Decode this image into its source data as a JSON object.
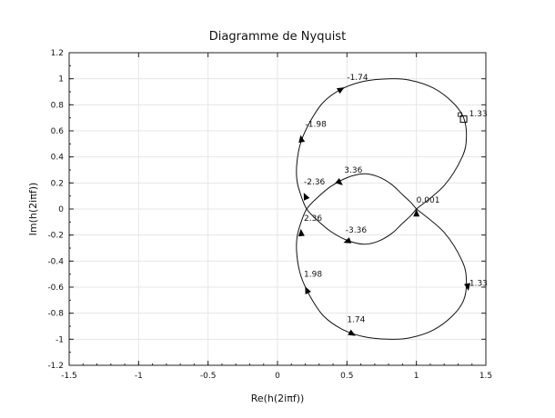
{
  "chart_data": {
    "type": "line",
    "title": "Diagramme de Nyquist",
    "xlabel": "Re(h(2iπf))",
    "ylabel": "Im(h(2iπf))",
    "xlim": [
      -1.5,
      1.5
    ],
    "ylim": [
      -1.2,
      1.2
    ],
    "xticks": [
      -1.5,
      -1,
      -0.5,
      0,
      0.5,
      1,
      1.5
    ],
    "xtick_labels": [
      "-1.5",
      "-1",
      "-0.5",
      "0",
      "0.5",
      "1",
      "1.5"
    ],
    "yticks": [
      -1.2,
      -1,
      -0.8,
      -0.6,
      -0.4,
      -0.2,
      0,
      0.2,
      0.4,
      0.6,
      0.8,
      1,
      1.2
    ],
    "ytick_labels": [
      "-1.2",
      "-1",
      "-0.8",
      "-0.6",
      "-0.4",
      "-0.2",
      "0",
      "0.2",
      "0.4",
      "0.6",
      "0.8",
      "1",
      "1.2"
    ],
    "grid": true,
    "series": [
      {
        "x": [
          1.0,
          1.2,
          1.33,
          1.36,
          1.34,
          1.26,
          1.12,
          0.95,
          0.8,
          0.62,
          0.46,
          0.33,
          0.24,
          0.17,
          0.14,
          0.14,
          0.17,
          0.21,
          0.28,
          0.38,
          0.5,
          0.62,
          0.72,
          0.82,
          0.9,
          0.96,
          1.0
        ],
        "y": [
          0.0,
          0.18,
          0.4,
          0.55,
          0.7,
          0.82,
          0.93,
          0.99,
          1.0,
          0.98,
          0.92,
          0.82,
          0.68,
          0.52,
          0.36,
          0.22,
          0.1,
          0.0,
          -0.08,
          -0.17,
          -0.24,
          -0.27,
          -0.25,
          -0.19,
          -0.11,
          -0.05,
          0.0
        ]
      },
      {
        "x": [
          1.0,
          0.96,
          0.9,
          0.82,
          0.72,
          0.62,
          0.5,
          0.38,
          0.28,
          0.21,
          0.17,
          0.14,
          0.14,
          0.17,
          0.24,
          0.33,
          0.46,
          0.62,
          0.8,
          0.95,
          1.12,
          1.26,
          1.34,
          1.36,
          1.33,
          1.2,
          1.0
        ],
        "y": [
          0.0,
          0.05,
          0.11,
          0.19,
          0.25,
          0.27,
          0.24,
          0.17,
          0.08,
          0.0,
          -0.1,
          -0.22,
          -0.36,
          -0.52,
          -0.68,
          -0.82,
          -0.92,
          -0.98,
          -1.0,
          -0.99,
          -0.93,
          -0.82,
          -0.7,
          -0.55,
          -0.4,
          -0.18,
          0.0
        ]
      }
    ],
    "arrows": [
      {
        "x": 0.46,
        "y": 0.92,
        "angle": -30
      },
      {
        "x": 0.17,
        "y": 0.54,
        "angle": -100
      },
      {
        "x": 0.2,
        "y": 0.1,
        "angle": -115
      },
      {
        "x": 0.45,
        "y": 0.2,
        "angle": 40
      },
      {
        "x": 0.5,
        "y": -0.25,
        "angle": 160
      },
      {
        "x": 0.17,
        "y": -0.18,
        "angle": -95
      },
      {
        "x": 0.21,
        "y": -0.62,
        "angle": -115
      },
      {
        "x": 0.54,
        "y": -0.96,
        "angle": 30
      },
      {
        "x": 1.37,
        "y": -0.6,
        "angle": 80
      },
      {
        "x": 1.0,
        "y": -0.03,
        "angle": -90
      }
    ],
    "marker": {
      "x": 1.34,
      "y": 0.69
    },
    "annotations": [
      {
        "text": "-1.74",
        "x": 0.5,
        "y": 0.99
      },
      {
        "text": "1.33",
        "x": 1.38,
        "y": 0.71
      },
      {
        "text": "-1.98",
        "x": 0.2,
        "y": 0.63
      },
      {
        "text": "3.36",
        "x": 0.48,
        "y": 0.28
      },
      {
        "text": "-2.36",
        "x": 0.19,
        "y": 0.19
      },
      {
        "text": "0.001",
        "x": 1.0,
        "y": 0.05
      },
      {
        "text": "2.36",
        "x": 0.19,
        "y": -0.09
      },
      {
        "text": "-3.36",
        "x": 0.49,
        "y": -0.18
      },
      {
        "text": "1.98",
        "x": 0.19,
        "y": -0.52
      },
      {
        "text": "-1.33",
        "x": 1.36,
        "y": -0.59
      },
      {
        "text": "1.74",
        "x": 0.5,
        "y": -0.87
      }
    ]
  }
}
